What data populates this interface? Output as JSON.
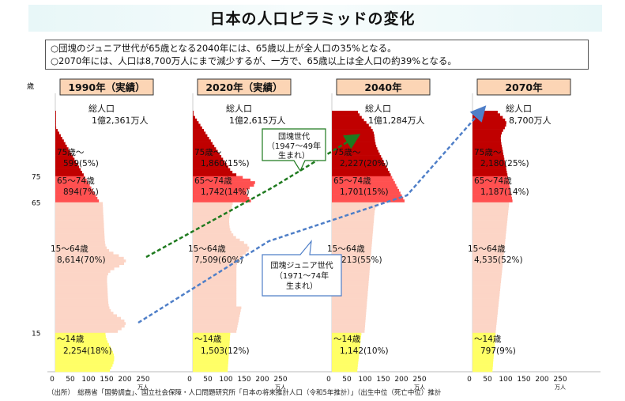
{
  "title": "日本の人口ピラミッドの変化",
  "summary": [
    "○団塊のジュニア世代が65歳となる2040年には、65歳以上が全人口の35%となる。",
    "○2070年には、人口は8,700万人にまで減少するが、一方で、65歳以上は全人口の約39%となる。"
  ],
  "source": "（出所）　総務省「国勢調査」、国立社会保障・人口問題研究所「日本の将来推計人口（令和5年推計）」（出生中位（死亡中位）推計",
  "colors": {
    "age75plus": "#c00000",
    "age65_74": "#ff5050",
    "age15_64": "#fcd5c6",
    "age0_14": "#ffff66",
    "header_bg": "#fcd5b5",
    "arrow_green": "#1f7a1f",
    "arrow_blue": "#4f7fc8"
  },
  "chart_data": {
    "type": "bar",
    "orientation": "horizontal",
    "x_axis": {
      "ticks": [
        "0",
        "50",
        "100",
        "150",
        "200",
        "250"
      ],
      "unit": "万人",
      "range": [
        0,
        250
      ]
    },
    "y_axis": {
      "label": "歳",
      "ticks": [
        "15",
        "65",
        "75"
      ],
      "range": [
        0,
        100
      ]
    },
    "age_groups": [
      "75歳～",
      "65～74歳",
      "15～64歳",
      "～14歳"
    ],
    "total_label": "総人口",
    "panels": [
      {
        "year": "1990年（実績）",
        "total": "1億2,361万人",
        "groups": [
          {
            "label": "75歳～",
            "value": "599",
            "pct": "5%"
          },
          {
            "label": "65～74歳",
            "value": "894",
            "pct": "7%"
          },
          {
            "label": "15～64歳",
            "value": "8,614",
            "pct": "70%"
          },
          {
            "label": "～14歳",
            "value": "2,254",
            "pct": "18%"
          }
        ]
      },
      {
        "year": "2020年（実績）",
        "total": "1億2,615万人",
        "groups": [
          {
            "label": "75歳～",
            "value": "1,860",
            "pct": "15%"
          },
          {
            "label": "65～74歳",
            "value": "1,742",
            "pct": "14%"
          },
          {
            "label": "15～64歳",
            "value": "7,509",
            "pct": "60%"
          },
          {
            "label": "～14歳",
            "value": "1,503",
            "pct": "12%"
          }
        ]
      },
      {
        "year": "2040年",
        "total": "1億1,284万人",
        "groups": [
          {
            "label": "75歳～",
            "value": "2,227",
            "pct": "20%"
          },
          {
            "label": "65～74歳",
            "value": "1,701",
            "pct": "15%"
          },
          {
            "label": "15～64歳",
            "value": "6,213",
            "pct": "55%"
          },
          {
            "label": "～14歳",
            "value": "1,142",
            "pct": "10%"
          }
        ]
      },
      {
        "year": "2070年",
        "total": "8,700万人",
        "groups": [
          {
            "label": "75歳～",
            "value": "2,180",
            "pct": "25%"
          },
          {
            "label": "65～74歳",
            "value": "1,187",
            "pct": "14%"
          },
          {
            "label": "15～64歳",
            "value": "4,535",
            "pct": "52%"
          },
          {
            "label": "～14歳",
            "value": "797",
            "pct": "9%"
          }
        ]
      }
    ],
    "annotations": [
      {
        "text": [
          "団塊世代",
          "（1947～49年",
          "生まれ）"
        ]
      },
      {
        "text": [
          "団塊ジュニア世代",
          "（1971～74年",
          "生まれ）"
        ]
      }
    ]
  }
}
